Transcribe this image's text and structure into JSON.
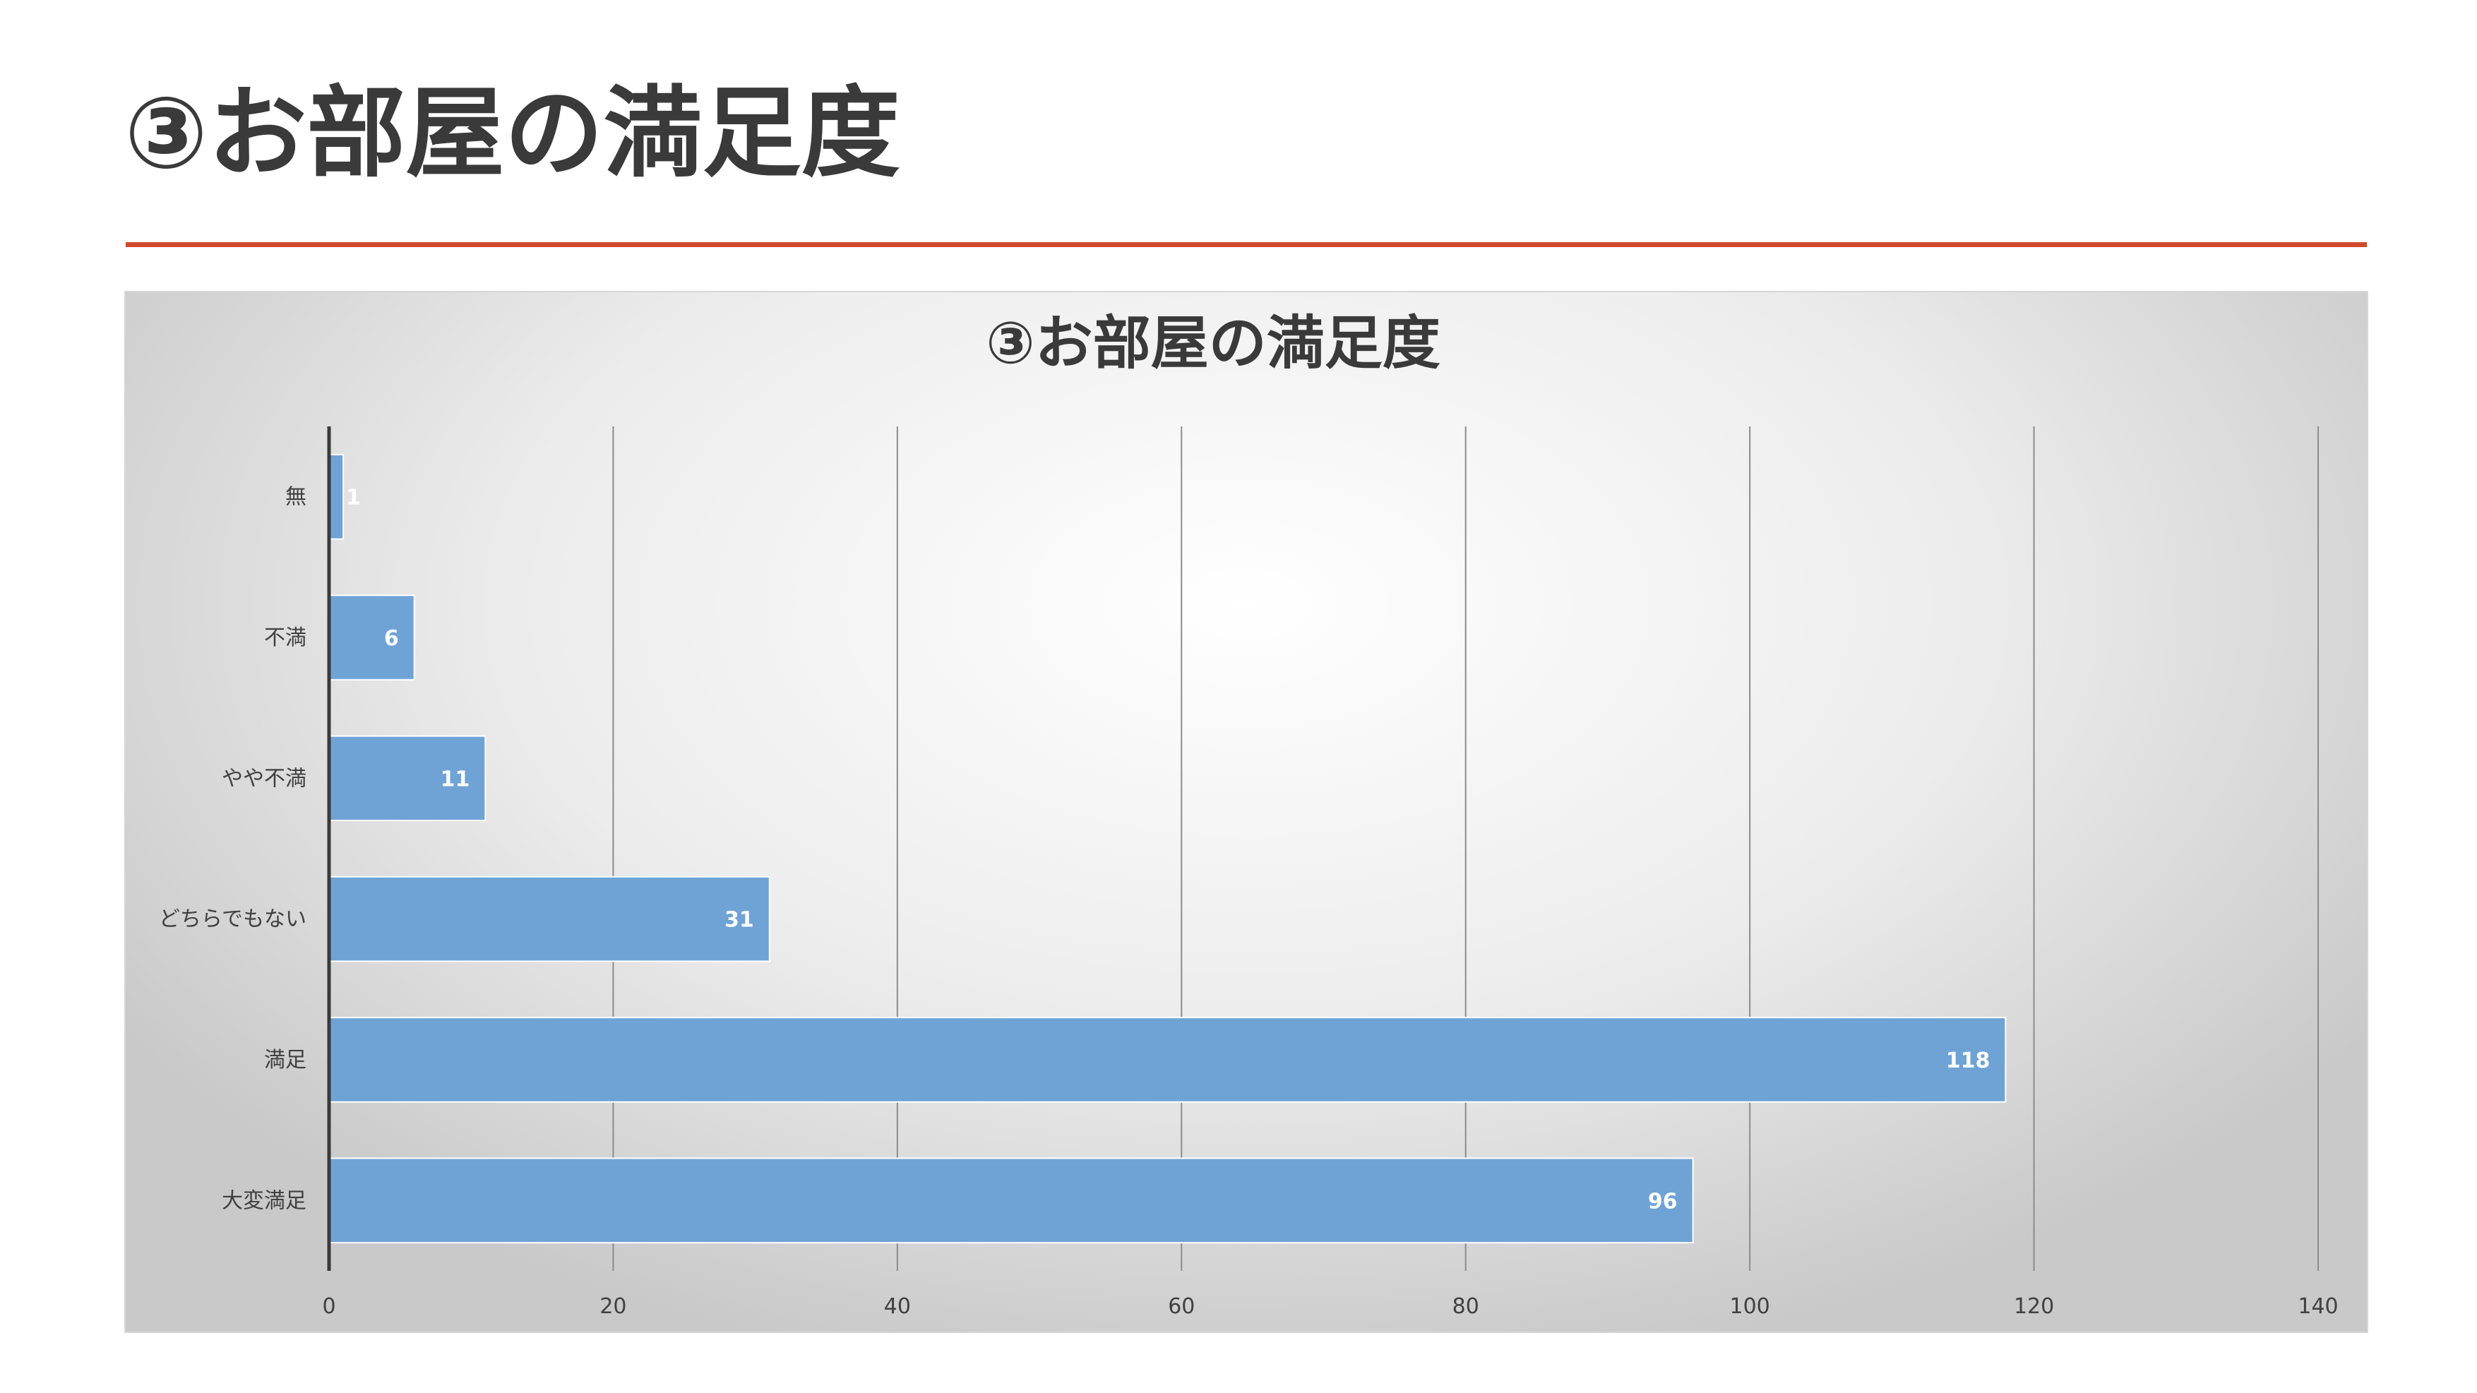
{
  "slide": {
    "title": "③お部屋の満足度"
  },
  "colors": {
    "accent_rule": "#cf4a2c",
    "bar": "#6fa3d6",
    "title_text": "#3a3a3a"
  },
  "chart_data": {
    "type": "bar",
    "orientation": "horizontal",
    "title": "③お部屋の満足度",
    "categories": [
      "無",
      "不満",
      "やや不満",
      "どちらでもない",
      "満足",
      "大変満足"
    ],
    "values": [
      1,
      6,
      11,
      31,
      118,
      96
    ],
    "xlim": [
      0,
      140
    ],
    "xticks": [
      0,
      20,
      40,
      60,
      80,
      100,
      120,
      140
    ],
    "grid": "vertical",
    "data_labels": true,
    "legend": "none"
  }
}
